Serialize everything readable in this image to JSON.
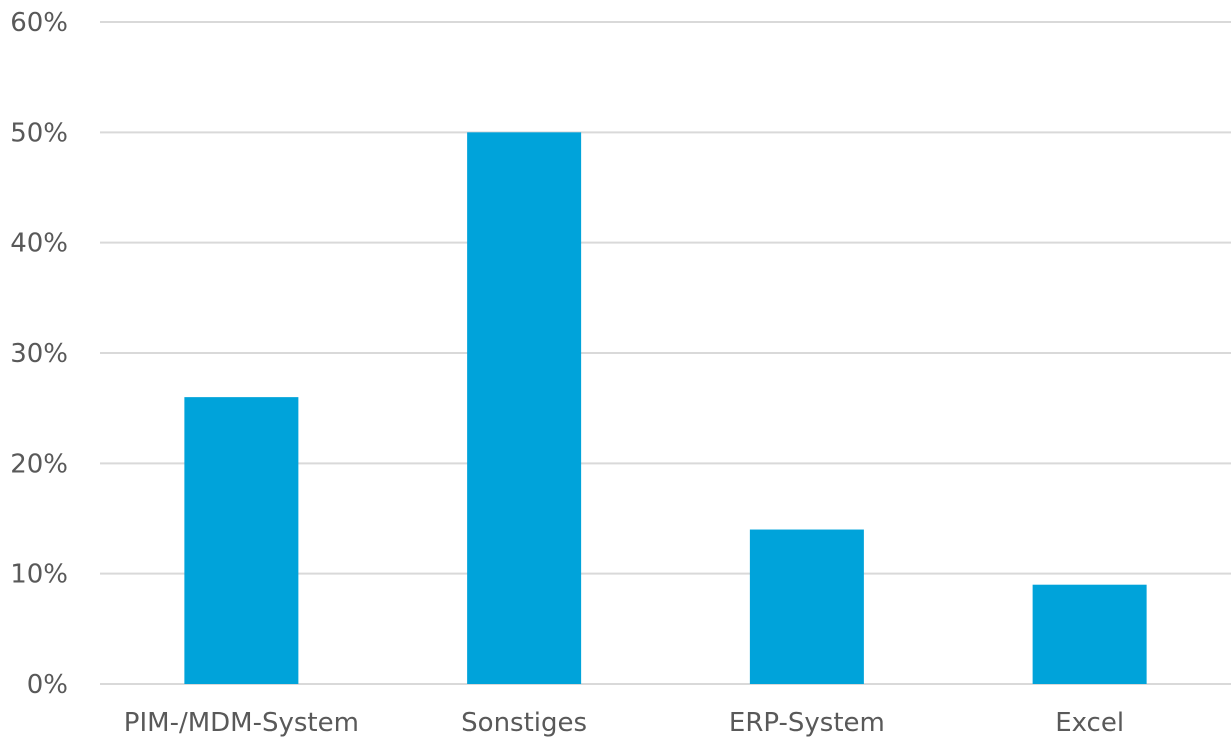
{
  "chart_data": {
    "type": "bar",
    "categories": [
      "PIM-/MDM-System",
      "Sonstiges",
      "ERP-System",
      "Excel"
    ],
    "values": [
      26,
      50,
      14,
      9
    ],
    "value_unit": "%",
    "ylim": [
      0,
      60
    ],
    "yticks": [
      0,
      10,
      20,
      30,
      40,
      50,
      60
    ],
    "ytick_labels": [
      "0%",
      "10%",
      "20%",
      "30%",
      "40%",
      "50%",
      "60%"
    ],
    "title": "",
    "xlabel": "",
    "ylabel": "",
    "grid": true,
    "legend": "none",
    "bar_color": "#00a3da"
  }
}
